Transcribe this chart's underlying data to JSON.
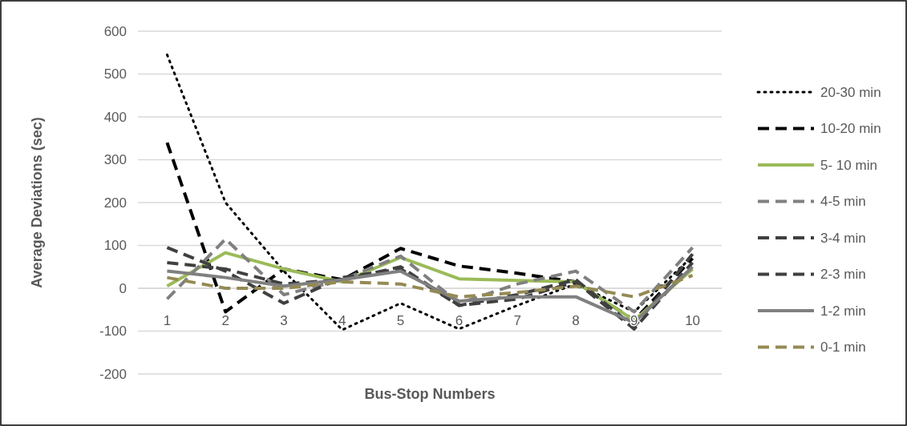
{
  "chart_data": {
    "type": "line",
    "xlabel": "Bus-Stop Numbers",
    "ylabel": "Average Deviations (sec)",
    "categories": [
      "1",
      "2",
      "3",
      "4",
      "5",
      "6",
      "7",
      "8",
      "9",
      "10"
    ],
    "series": [
      {
        "name": "20-30 min",
        "color": "#000000",
        "line_style": "dotted",
        "values": [
          545,
          200,
          40,
          -97,
          -35,
          -95,
          -40,
          10,
          -55,
          75
        ]
      },
      {
        "name": "10-20 min",
        "color": "#000000",
        "line_style": "dashed",
        "values": [
          340,
          -55,
          45,
          20,
          93,
          52,
          35,
          15,
          -75,
          70
        ]
      },
      {
        "name": "5- 10 min",
        "color": "#9bbb59",
        "line_style": "solid",
        "values": [
          5,
          83,
          45,
          15,
          72,
          22,
          18,
          15,
          -75,
          45
        ]
      },
      {
        "name": "4-5 min",
        "color": "#808080",
        "line_style": "dashed",
        "values": [
          -25,
          115,
          -15,
          20,
          75,
          -35,
          10,
          40,
          -55,
          95
        ]
      },
      {
        "name": "3-4 min",
        "color": "#404040",
        "line_style": "dashed",
        "values": [
          95,
          40,
          -35,
          25,
          45,
          -40,
          -15,
          20,
          -90,
          80
        ]
      },
      {
        "name": "2-3 min",
        "color": "#404040",
        "line_style": "dashed",
        "values": [
          60,
          45,
          10,
          20,
          50,
          -40,
          -25,
          15,
          -95,
          60
        ]
      },
      {
        "name": "1-2 min",
        "color": "#808080",
        "line_style": "solid",
        "values": [
          40,
          25,
          5,
          20,
          40,
          -30,
          -20,
          -20,
          -80,
          50
        ]
      },
      {
        "name": "0-1 min",
        "color": "#948a54",
        "line_style": "dashed",
        "values": [
          25,
          0,
          0,
          15,
          10,
          -20,
          -10,
          5,
          -20,
          30
        ]
      }
    ],
    "ylim": [
      -200,
      600
    ],
    "yticks": [
      -200,
      -100,
      0,
      100,
      200,
      300,
      400,
      500,
      600
    ],
    "grid": "y",
    "legend": "right"
  }
}
